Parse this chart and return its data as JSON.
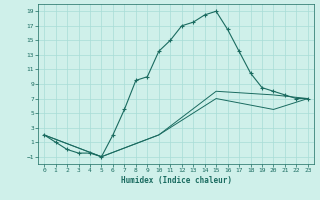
{
  "xlabel": "Humidex (Indice chaleur)",
  "ylabel": "",
  "xlim": [
    -0.5,
    23.5
  ],
  "ylim": [
    -2,
    20
  ],
  "xticks": [
    0,
    1,
    2,
    3,
    4,
    5,
    6,
    7,
    8,
    9,
    10,
    11,
    12,
    13,
    14,
    15,
    16,
    17,
    18,
    19,
    20,
    21,
    22,
    23
  ],
  "yticks": [
    -1,
    1,
    3,
    5,
    7,
    9,
    11,
    13,
    15,
    17,
    19
  ],
  "background_color": "#cff0ea",
  "grid_color": "#a8ddd7",
  "line_color": "#1a6b60",
  "line1_x": [
    0,
    1,
    2,
    3,
    4,
    5,
    6,
    7,
    8,
    9,
    10,
    11,
    12,
    13,
    14,
    15,
    16,
    17,
    18,
    19,
    20,
    21,
    22,
    23
  ],
  "line1_y": [
    2,
    1,
    0,
    -0.5,
    -0.5,
    -1,
    2,
    5.5,
    9.5,
    10,
    13.5,
    15,
    17,
    17.5,
    18.5,
    19,
    16.5,
    13.5,
    10.5,
    8.5,
    8,
    7.5,
    7,
    7
  ],
  "line2_x": [
    0,
    5,
    10,
    15,
    20,
    23
  ],
  "line2_y": [
    2,
    -1,
    2,
    8,
    7.5,
    7
  ],
  "line3_x": [
    0,
    5,
    10,
    15,
    20,
    23
  ],
  "line3_y": [
    2,
    -1,
    2,
    7,
    5.5,
    7
  ]
}
